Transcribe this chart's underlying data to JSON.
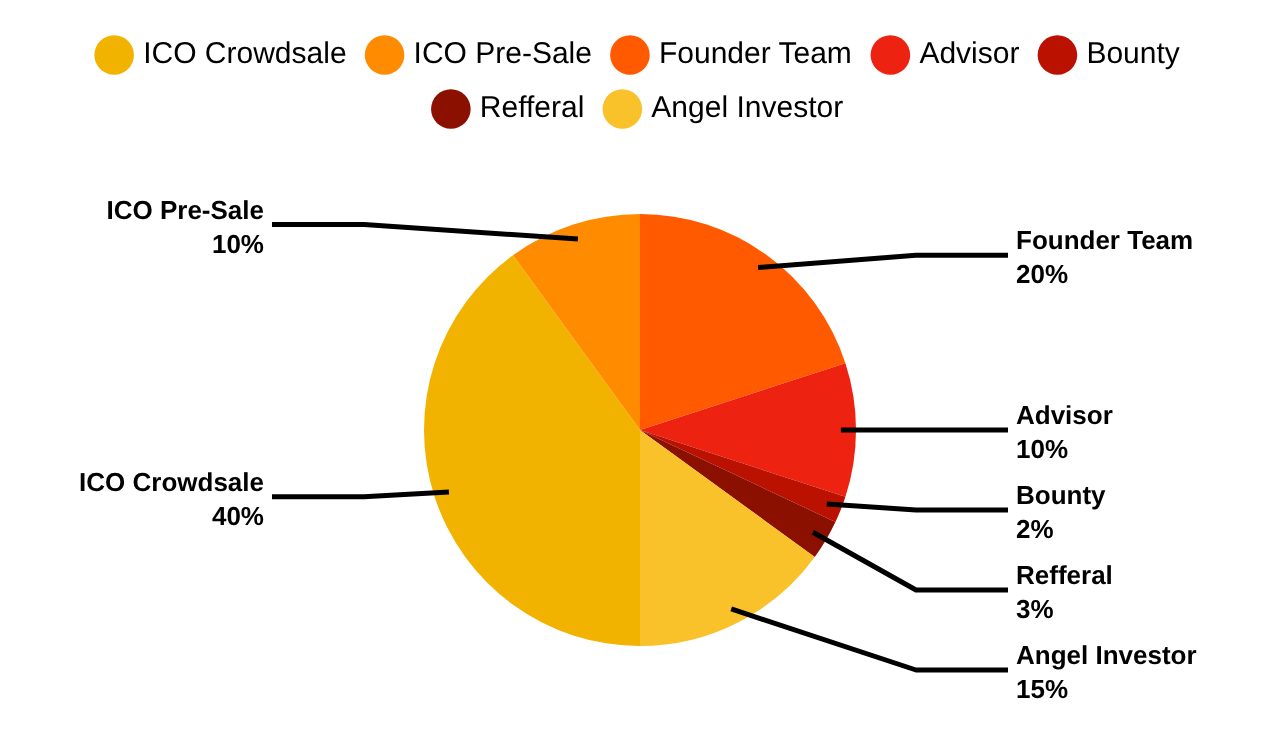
{
  "chart_data": {
    "type": "pie",
    "categories": [
      "ICO Crowdsale",
      "ICO Pre-Sale",
      "Founder Team",
      "Advisor",
      "Bounty",
      "Refferal",
      "Angel Investor"
    ],
    "values": [
      40,
      10,
      20,
      10,
      2,
      3,
      15
    ],
    "value_labels": [
      "40%",
      "10%",
      "20%",
      "10%",
      "2%",
      "3%",
      "15%"
    ],
    "colors": [
      "#f2b200",
      "#ff8c00",
      "#ff5a00",
      "#ee2211",
      "#bb1100",
      "#8b1000",
      "#f9c12a"
    ],
    "legend": "top"
  }
}
